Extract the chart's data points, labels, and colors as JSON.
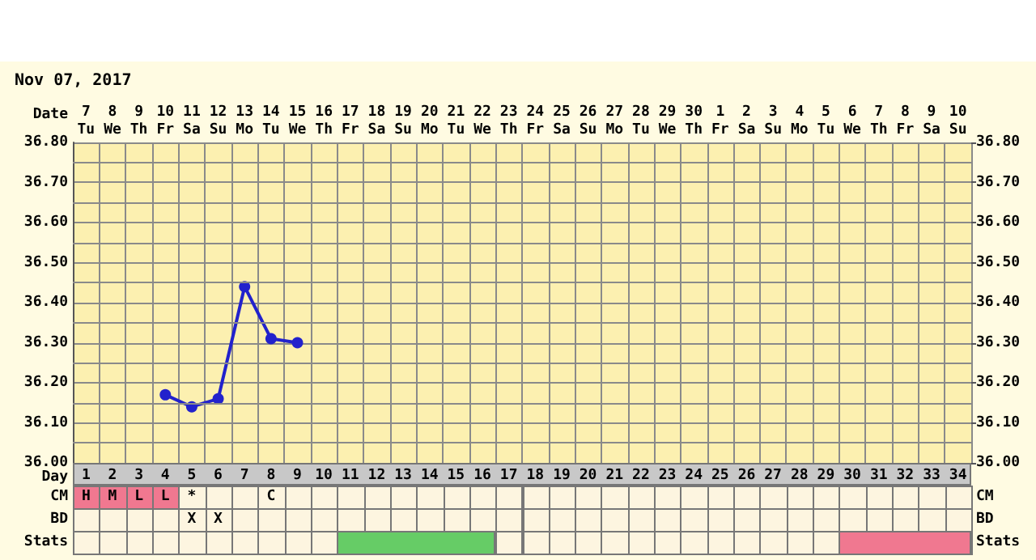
{
  "chart_data": {
    "type": "line",
    "title": "Nov 07, 2017",
    "xlabel": "Date",
    "x2label": "Day",
    "categories": [
      "7\nTu",
      "8\nWe",
      "9\nTh",
      "10\nFr",
      "11\nSa",
      "12\nSu",
      "13\nMo",
      "14\nTu",
      "15\nWe",
      "16\nTh",
      "17\nFr",
      "18\nSa",
      "19\nSu",
      "20\nMo",
      "21\nTu",
      "22\nWe",
      "23\nTh",
      "24\nFr",
      "25\nSa",
      "26\nSu",
      "27\nMo",
      "28\nTu",
      "29\nWe",
      "30\nTh",
      "1\nFr",
      "2\nSa",
      "3\nSu",
      "4\nMo",
      "5\nTu",
      "6\nWe",
      "7\nTh",
      "8\nFr",
      "9\nSa",
      "10\nSu"
    ],
    "series": [
      {
        "color": "#2222cc",
        "values": [
          null,
          null,
          null,
          36.17,
          36.14,
          36.16,
          36.44,
          36.31,
          36.3,
          null,
          null,
          null,
          null,
          null,
          null,
          null,
          null,
          null,
          null,
          null,
          null,
          null,
          null,
          null,
          null,
          null,
          null,
          null,
          null,
          null,
          null,
          null,
          null,
          null
        ]
      }
    ],
    "ylim": [
      36.0,
      36.8
    ],
    "yticks": [
      {
        "value": 36.0,
        "label": "36.00"
      },
      {
        "value": 36.05,
        "label": null
      },
      {
        "value": 36.1,
        "label": "36.10"
      },
      {
        "value": 36.15,
        "label": null
      },
      {
        "value": 36.2,
        "label": "36.20"
      },
      {
        "value": 36.25,
        "label": null
      },
      {
        "value": 36.3,
        "label": "36.30"
      },
      {
        "value": 36.35,
        "label": null
      },
      {
        "value": 36.4,
        "label": "36.40"
      },
      {
        "value": 36.45,
        "label": null
      },
      {
        "value": 36.5,
        "label": "36.50"
      },
      {
        "value": 36.55,
        "label": null
      },
      {
        "value": 36.6,
        "label": "36.60"
      },
      {
        "value": 36.65,
        "label": null
      },
      {
        "value": 36.7,
        "label": "36.70"
      },
      {
        "value": 36.75,
        "label": null
      },
      {
        "value": 36.8,
        "label": "36.80"
      }
    ],
    "y2lim": [
      36.0,
      36.8
    ],
    "y2ticks": [
      {
        "value": 36.0,
        "label": "36.00"
      },
      {
        "value": 36.1,
        "label": "36.10"
      },
      {
        "value": 36.2,
        "label": "36.20"
      },
      {
        "value": 36.3,
        "label": "36.30"
      },
      {
        "value": 36.4,
        "label": "36.40"
      },
      {
        "value": 36.5,
        "label": "36.50"
      },
      {
        "value": 36.6,
        "label": "36.60"
      },
      {
        "value": 36.7,
        "label": "36.70"
      },
      {
        "value": 36.8,
        "label": "36.80"
      }
    ],
    "x2lim": [
      0.5,
      34.5
    ],
    "x2ticks": [
      1,
      2,
      3,
      4,
      5,
      6,
      7,
      8,
      9,
      10,
      11,
      12,
      13,
      14,
      15,
      16,
      17,
      18,
      19,
      20,
      21,
      22,
      23,
      24,
      25,
      26,
      27,
      28,
      29,
      30,
      31,
      32,
      33,
      34
    ],
    "annotations": [
      "CM",
      "H",
      "M",
      "L",
      "L",
      "*",
      "C",
      "BD",
      "X",
      "X",
      "Stats"
    ],
    "grid": true,
    "marker": "circle",
    "line_style": "solid"
  }
}
